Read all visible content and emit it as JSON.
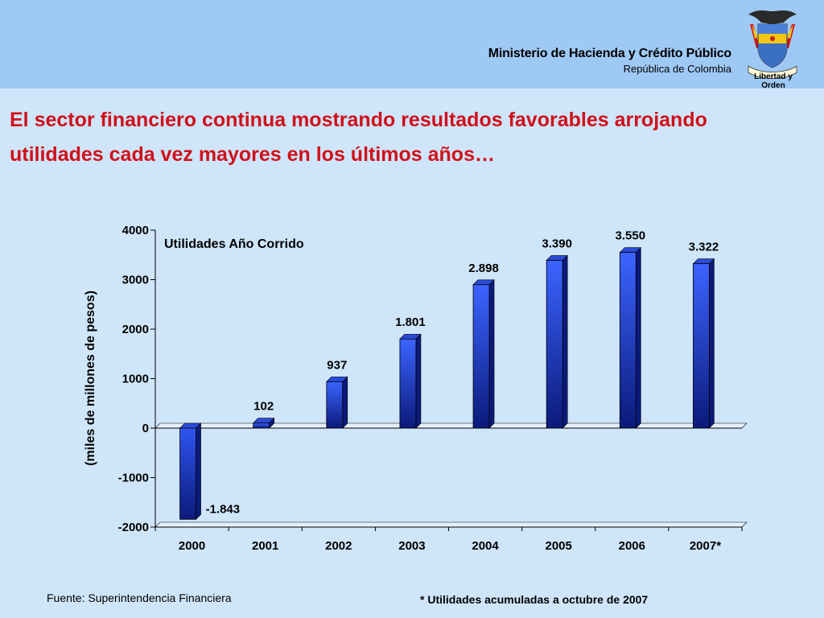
{
  "header": {
    "ministry": "Ministerio de Hacienda y Crédito Público",
    "republic": "República de Colombia",
    "seal_motto": "Libertad y Orden",
    "band_color": "#9fc9f5"
  },
  "slide": {
    "title_line1": "El sector financiero continua mostrando resultados favorables arrojando",
    "title_line2": "utilidades cada vez mayores en los últimos años…",
    "title_color": "#d0101a"
  },
  "chart_data": {
    "type": "bar",
    "title": "Utilidades Año Corrido",
    "ylabel": "(miles de millones de pesos)",
    "xlabel": "",
    "categories": [
      "2000",
      "2001",
      "2002",
      "2003",
      "2004",
      "2005",
      "2006",
      "2007*"
    ],
    "values": [
      -1843,
      102,
      937,
      1801,
      2898,
      3390,
      3550,
      3322
    ],
    "data_labels": [
      "-1.843",
      "102",
      "937",
      "1.801",
      "2.898",
      "3.390",
      "3.550",
      "3.322"
    ],
    "ylim": [
      -2000,
      4000
    ],
    "yticks": [
      4000,
      3000,
      2000,
      1000,
      0,
      -1000,
      -2000
    ],
    "bar_color": "#1f3fd6",
    "bar_dark": "#0b1a7a",
    "grid": false,
    "legend": "none"
  },
  "footer": {
    "source": "Fuente: Superintendencia Financiera",
    "note": "* Utilidades acumuladas a octubre de 2007"
  }
}
